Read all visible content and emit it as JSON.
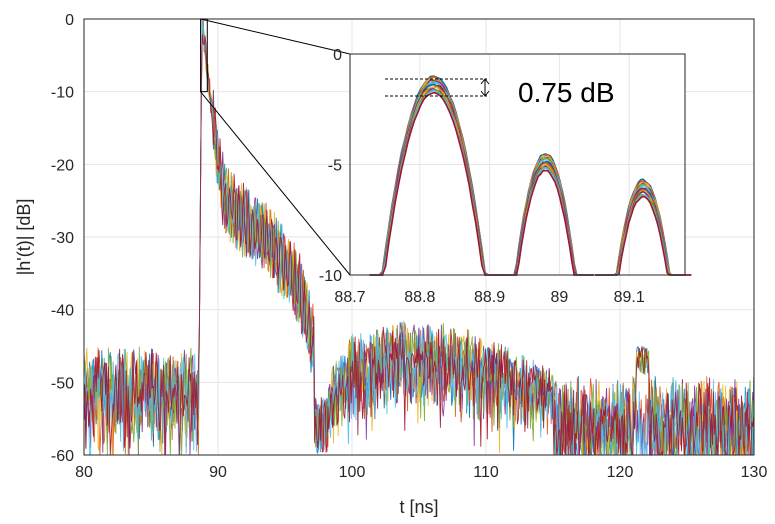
{
  "chart_data": [
    {
      "type": "line",
      "xlabel": "t [ns]",
      "ylabel": "|h'(t)| [dB]",
      "xlim": [
        80,
        130
      ],
      "ylim": [
        -60,
        0
      ],
      "xticks": [
        80,
        90,
        100,
        110,
        120,
        130
      ],
      "yticks": [
        0,
        -10,
        -20,
        -30,
        -40,
        -50,
        -60
      ],
      "grid": true,
      "legend": "none",
      "series_count": 7,
      "colors": [
        "#0072BD",
        "#D95319",
        "#EDB120",
        "#7E2F8E",
        "#77AC30",
        "#4DBEEE",
        "#A2142F"
      ],
      "envelope": {
        "noise_floor_mean": -53,
        "peak_time": 88.8,
        "peak_value": 0,
        "decay_points": [
          [
            88.8,
            0
          ],
          [
            89.5,
            -12
          ],
          [
            90.5,
            -25
          ],
          [
            92,
            -28
          ],
          [
            94,
            -31
          ],
          [
            96,
            -37
          ],
          [
            97.2,
            -45
          ]
        ],
        "late_hump": [
          [
            98,
            -52
          ],
          [
            100,
            -46
          ],
          [
            104,
            -44
          ],
          [
            108,
            -45
          ],
          [
            112,
            -48
          ],
          [
            115,
            -50
          ]
        ]
      }
    },
    {
      "type": "line",
      "role": "inset",
      "xlim": [
        88.7,
        89.18
      ],
      "ylim": [
        -10,
        0
      ],
      "xticks": [
        88.7,
        88.8,
        88.9,
        89,
        89.1
      ],
      "xtick_labels": [
        "88.7",
        "88.8",
        "88.9",
        "89",
        "89.1"
      ],
      "yticks": [
        0,
        -5,
        -10
      ],
      "grid": true,
      "zoom_region": {
        "x": [
          88.7,
          89.18
        ],
        "y": [
          -10,
          0
        ]
      },
      "peaks": [
        {
          "t": 88.82,
          "value": -1.0,
          "width": 0.16
        },
        {
          "t": 88.98,
          "value": -4.5,
          "width": 0.12
        },
        {
          "t": 89.12,
          "value": -5.7,
          "width": 0.12
        }
      ],
      "annotation": "0.75 dB",
      "spread_db": 0.75
    }
  ]
}
